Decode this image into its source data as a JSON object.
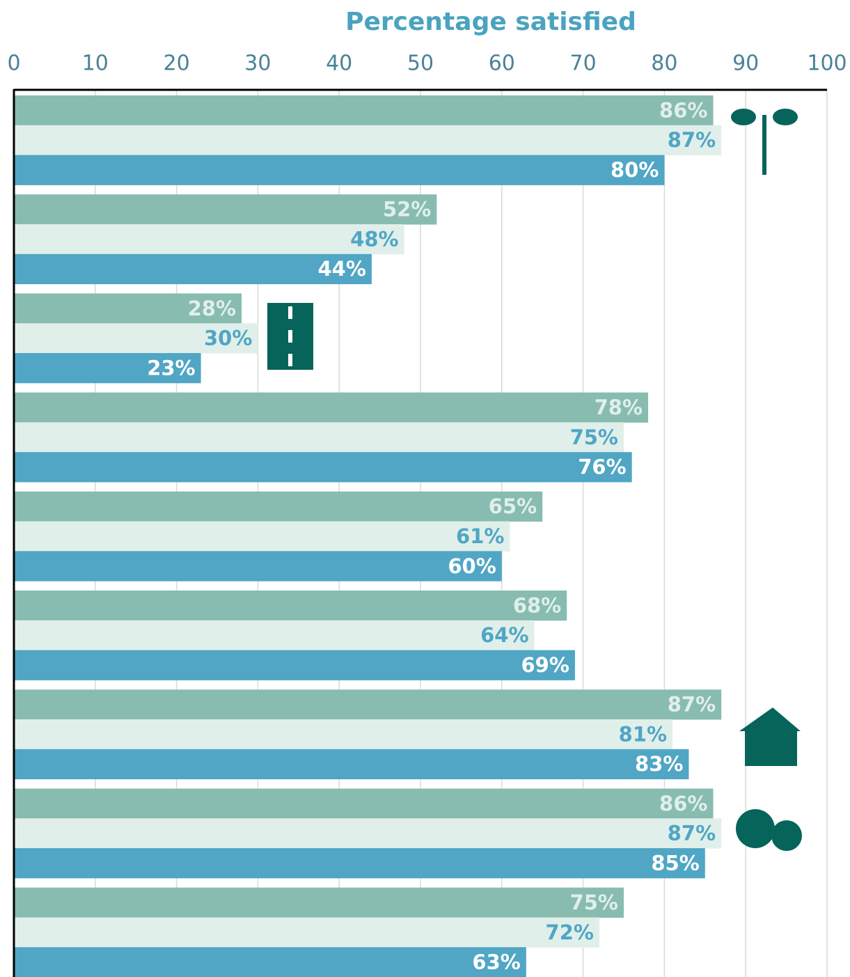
{
  "chart_data": {
    "type": "bar",
    "orientation": "horizontal",
    "title": "Percentage satisfied",
    "categories": [
      null,
      null,
      null,
      null,
      null,
      null,
      null,
      null,
      null
    ],
    "series": [
      {
        "color": "#88bcb0",
        "label_color": "#e0efea",
        "values": [
          86,
          52,
          28,
          78,
          65,
          68,
          87,
          86,
          75
        ],
        "value_labels": [
          "86%",
          "52%",
          "28%",
          "78%",
          "65%",
          "68%",
          "87%",
          "86%",
          "75%"
        ]
      },
      {
        "color": "#e0efea",
        "label_color": "#50a6c4",
        "values": [
          87,
          48,
          30,
          75,
          61,
          64,
          81,
          87,
          72
        ],
        "value_labels": [
          "87%",
          "48%",
          "30%",
          "75%",
          "61%",
          "64%",
          "81%",
          "87%",
          "72%"
        ]
      },
      {
        "color": "#50a6c4",
        "label_color": "#ffffff",
        "values": [
          80,
          44,
          23,
          76,
          60,
          69,
          83,
          85,
          63
        ],
        "value_labels": [
          "80%",
          "44%",
          "23%",
          "76%",
          "60%",
          "69%",
          "83%",
          "85%",
          "63%"
        ]
      }
    ],
    "xlim": [
      0,
      100
    ],
    "xticks": [
      0,
      10,
      20,
      30,
      40,
      50,
      60,
      70,
      80,
      90,
      100
    ],
    "grid": true
  }
}
